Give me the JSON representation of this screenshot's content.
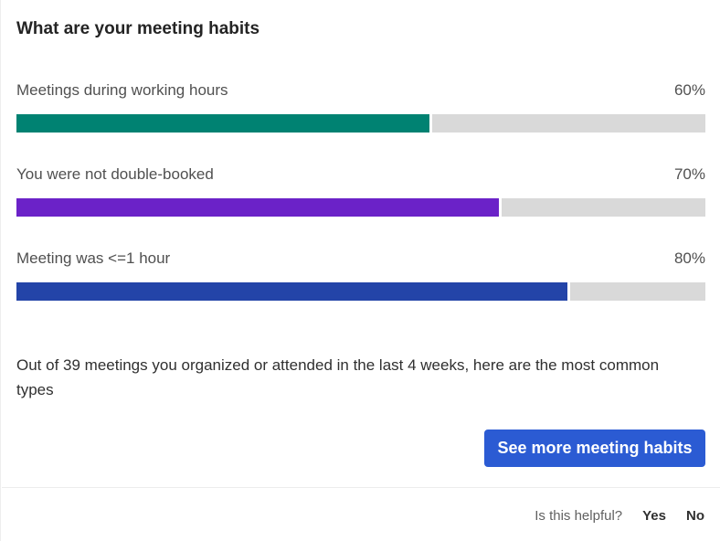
{
  "title": "What are your meeting habits",
  "habits": [
    {
      "label": "Meetings during working hours",
      "value_text": "60%",
      "percent": 60,
      "color": "#008272"
    },
    {
      "label": "You were not double-booked",
      "value_text": "70%",
      "percent": 70,
      "color": "#6b22c8"
    },
    {
      "label": "Meeting was <=1 hour",
      "value_text": "80%",
      "percent": 80,
      "color": "#2344a8"
    }
  ],
  "track_color": "#d9d9d9",
  "summary": "Out of 39 meetings you organized or attended in the last 4 weeks, here are the most common types",
  "button_label": "See more meeting habits",
  "footer": {
    "question": "Is this helpful?",
    "yes": "Yes",
    "no": "No"
  }
}
